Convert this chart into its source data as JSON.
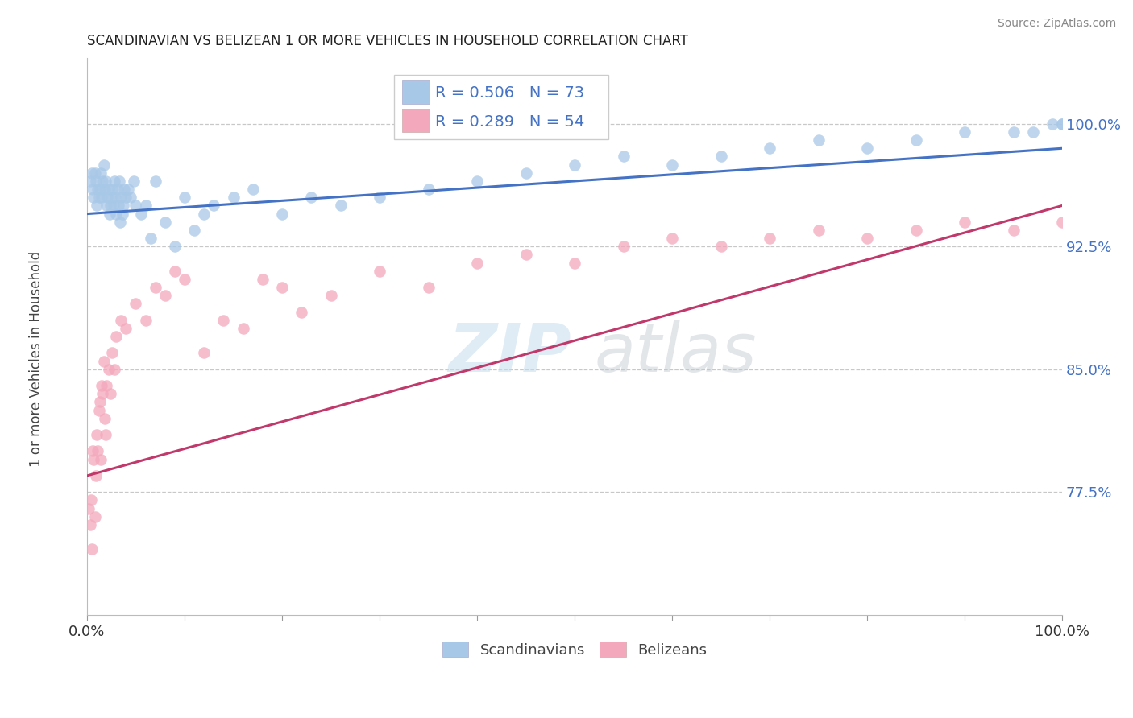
{
  "title": "SCANDINAVIAN VS BELIZEAN 1 OR MORE VEHICLES IN HOUSEHOLD CORRELATION CHART",
  "source": "Source: ZipAtlas.com",
  "ylabel": "1 or more Vehicles in Household",
  "xlim": [
    0,
    100
  ],
  "ylim": [
    70,
    104
  ],
  "yticks": [
    77.5,
    85.0,
    92.5,
    100.0
  ],
  "xticks": [
    0,
    10,
    20,
    30,
    40,
    50,
    60,
    70,
    80,
    90,
    100
  ],
  "xticklabels_show": [
    "0.0%",
    "100.0%"
  ],
  "yticklabels": [
    "77.5%",
    "85.0%",
    "92.5%",
    "100.0%"
  ],
  "blue_R": 0.506,
  "blue_N": 73,
  "pink_R": 0.289,
  "pink_N": 54,
  "blue_color": "#a8c8e8",
  "pink_color": "#f4a8bc",
  "trend_blue": "#4472c4",
  "trend_pink": "#c0396a",
  "legend_blue_label": "Scandinavians",
  "legend_pink_label": "Belizeans",
  "blue_trend_start_y": 94.5,
  "blue_trend_end_y": 98.5,
  "pink_trend_start_y": 78.5,
  "pink_trend_end_y": 95.0,
  "blue_x": [
    0.3,
    0.5,
    0.6,
    0.7,
    0.8,
    0.9,
    1.0,
    1.1,
    1.2,
    1.3,
    1.4,
    1.5,
    1.6,
    1.7,
    1.8,
    1.9,
    2.0,
    2.1,
    2.2,
    2.3,
    2.4,
    2.5,
    2.6,
    2.7,
    2.8,
    2.9,
    3.0,
    3.1,
    3.2,
    3.3,
    3.4,
    3.5,
    3.6,
    3.7,
    3.8,
    4.0,
    4.2,
    4.5,
    4.8,
    5.0,
    5.5,
    6.0,
    6.5,
    7.0,
    8.0,
    9.0,
    10.0,
    11.0,
    12.0,
    13.0,
    15.0,
    17.0,
    20.0,
    23.0,
    26.0,
    30.0,
    35.0,
    40.0,
    45.0,
    50.0,
    55.0,
    60.0,
    65.0,
    70.0,
    75.0,
    80.0,
    85.0,
    90.0,
    95.0,
    97.0,
    99.0,
    100.0,
    100.0
  ],
  "blue_y": [
    96.5,
    97.0,
    96.0,
    95.5,
    97.0,
    96.5,
    95.0,
    96.0,
    95.5,
    96.0,
    97.0,
    95.5,
    96.5,
    97.5,
    96.0,
    96.5,
    95.0,
    95.5,
    96.0,
    94.5,
    95.0,
    95.5,
    96.0,
    95.0,
    96.5,
    95.5,
    94.5,
    96.0,
    95.0,
    96.5,
    94.0,
    95.5,
    94.5,
    95.0,
    96.0,
    95.5,
    96.0,
    95.5,
    96.5,
    95.0,
    94.5,
    95.0,
    93.0,
    96.5,
    94.0,
    92.5,
    95.5,
    93.5,
    94.5,
    95.0,
    95.5,
    96.0,
    94.5,
    95.5,
    95.0,
    95.5,
    96.0,
    96.5,
    97.0,
    97.5,
    98.0,
    97.5,
    98.0,
    98.5,
    99.0,
    98.5,
    99.0,
    99.5,
    99.5,
    99.5,
    100.0,
    100.0,
    100.0
  ],
  "pink_x": [
    0.2,
    0.3,
    0.4,
    0.5,
    0.6,
    0.7,
    0.8,
    0.9,
    1.0,
    1.1,
    1.2,
    1.3,
    1.4,
    1.5,
    1.6,
    1.7,
    1.8,
    1.9,
    2.0,
    2.2,
    2.4,
    2.6,
    2.8,
    3.0,
    3.5,
    4.0,
    5.0,
    6.0,
    7.0,
    8.0,
    9.0,
    10.0,
    12.0,
    14.0,
    16.0,
    18.0,
    20.0,
    22.0,
    25.0,
    30.0,
    35.0,
    40.0,
    45.0,
    50.0,
    55.0,
    60.0,
    65.0,
    70.0,
    75.0,
    80.0,
    85.0,
    90.0,
    95.0,
    100.0
  ],
  "pink_y": [
    76.5,
    75.5,
    77.0,
    74.0,
    80.0,
    79.5,
    76.0,
    78.5,
    81.0,
    80.0,
    82.5,
    83.0,
    79.5,
    84.0,
    83.5,
    85.5,
    82.0,
    81.0,
    84.0,
    85.0,
    83.5,
    86.0,
    85.0,
    87.0,
    88.0,
    87.5,
    89.0,
    88.0,
    90.0,
    89.5,
    91.0,
    90.5,
    86.0,
    88.0,
    87.5,
    90.5,
    90.0,
    88.5,
    89.5,
    91.0,
    90.0,
    91.5,
    92.0,
    91.5,
    92.5,
    93.0,
    92.5,
    93.0,
    93.5,
    93.0,
    93.5,
    94.0,
    93.5,
    94.0
  ]
}
